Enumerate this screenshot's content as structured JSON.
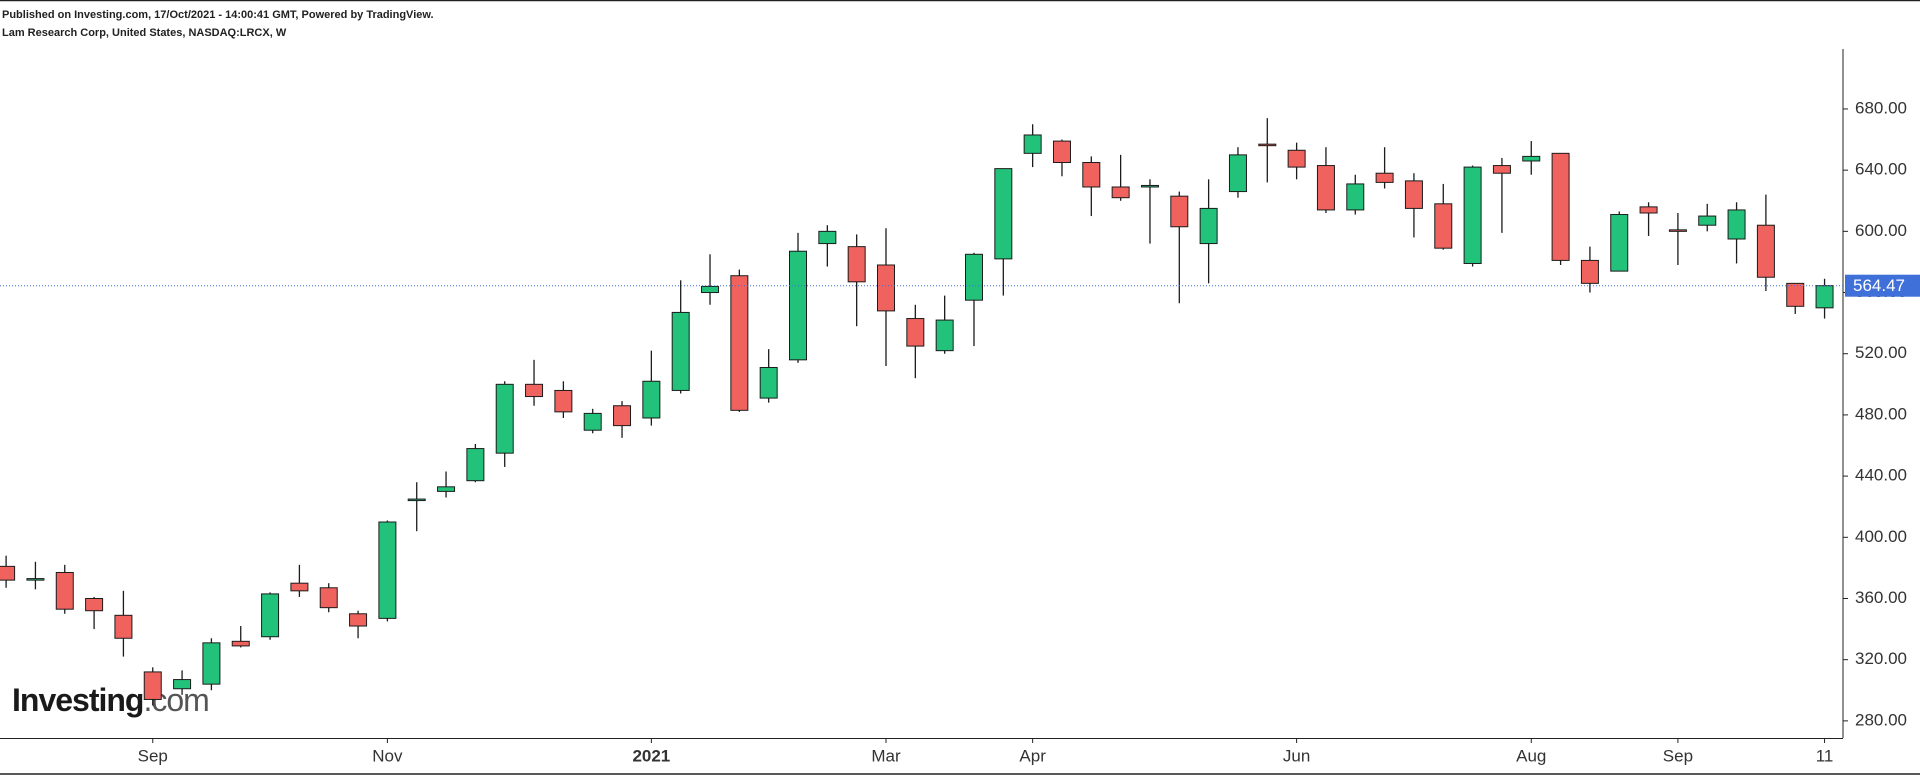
{
  "chart_data": {
    "type": "candlestick",
    "header": "Published on Investing.com, 17/Oct/2021 - 14:00:41 GMT, Powered by TradingView.",
    "title": "Lam Research Corp, United States, NASDAQ:LRCX, W",
    "logo": "Investing",
    "logo_suffix": ".com",
    "categories": [
      null,
      null,
      null,
      null,
      null,
      "Sep",
      null,
      null,
      null,
      null,
      null,
      null,
      null,
      "Nov",
      null,
      null,
      null,
      null,
      null,
      null,
      null,
      null,
      "2021",
      null,
      null,
      null,
      null,
      null,
      null,
      null,
      "Mar",
      null,
      null,
      null,
      null,
      "Apr",
      null,
      null,
      null,
      null,
      null,
      null,
      null,
      null,
      "Jun",
      null,
      null,
      null,
      null,
      null,
      null,
      null,
      "Aug",
      null,
      null,
      null,
      null,
      "Sep",
      null,
      null,
      null,
      null,
      "11"
    ],
    "open": [
      381,
      372,
      377,
      360,
      349,
      312,
      301,
      304,
      332,
      335,
      370,
      367,
      350,
      347,
      424,
      430,
      437,
      455,
      500,
      496,
      470,
      486,
      478,
      496,
      560,
      571,
      491,
      516,
      592,
      590,
      578,
      543,
      522,
      555,
      582,
      651,
      659,
      645,
      629,
      629,
      623,
      592,
      626,
      657,
      653,
      643,
      614,
      638,
      633,
      618,
      579,
      643,
      646,
      651,
      581,
      574,
      616,
      601,
      604,
      595,
      604,
      566,
      550
    ],
    "high": [
      388,
      384,
      382,
      361,
      365,
      315,
      313,
      334,
      342,
      364,
      382,
      370,
      352,
      411,
      436,
      443,
      461,
      502,
      516,
      502,
      484,
      489,
      522,
      568,
      585,
      575,
      523,
      599,
      604,
      598,
      602,
      552,
      558,
      586,
      641,
      670,
      660,
      649,
      650,
      634,
      626,
      634,
      655,
      674,
      658,
      655,
      637,
      655,
      638,
      631,
      643,
      648,
      659,
      651,
      590,
      613,
      619,
      612,
      618,
      619,
      624,
      566,
      569
    ],
    "low": [
      367,
      366,
      350,
      340,
      322,
      290,
      297,
      300,
      328,
      333,
      361,
      351,
      334,
      345,
      404,
      426,
      436,
      446,
      486,
      478,
      468,
      465,
      473,
      494,
      552,
      482,
      488,
      514,
      577,
      538,
      512,
      504,
      520,
      525,
      558,
      642,
      636,
      610,
      620,
      592,
      553,
      566,
      622,
      632,
      634,
      612,
      611,
      628,
      596,
      588,
      577,
      599,
      637,
      578,
      560,
      574,
      597,
      578,
      600,
      579,
      561,
      546,
      543
    ],
    "close": [
      372,
      373,
      353,
      352,
      334,
      294,
      307,
      331,
      329,
      363,
      365,
      354,
      342,
      410,
      425,
      433,
      458,
      500,
      492,
      482,
      481,
      473,
      502,
      547,
      564,
      483,
      511,
      587,
      600,
      567,
      548,
      525,
      542,
      585,
      641,
      663,
      645,
      629,
      622,
      630,
      603,
      615,
      650,
      656,
      642,
      614,
      631,
      632,
      615,
      589,
      642,
      638,
      649,
      581,
      566,
      611,
      612,
      600,
      610,
      614,
      570,
      551,
      564.47
    ],
    "up_color": "#22c27a",
    "down_color": "#f0625d",
    "outline_color": "#1c1c1c",
    "last_price": 564.47,
    "last_price_color": "#3f6fd8",
    "ylim": [
      268.8,
      719.2
    ],
    "yticks": [
      {
        "value": 280,
        "label": "280.00"
      },
      {
        "value": 320,
        "label": "320.00"
      },
      {
        "value": 360,
        "label": "360.00"
      },
      {
        "value": 400,
        "label": "400.00"
      },
      {
        "value": 440,
        "label": "440.00"
      },
      {
        "value": 480,
        "label": "480.00"
      },
      {
        "value": 520,
        "label": "520.00"
      },
      {
        "value": 560,
        "label": "560.00"
      },
      {
        "value": 600,
        "label": "600.00"
      },
      {
        "value": 640,
        "label": "640.00"
      },
      {
        "value": 680,
        "label": "680.00"
      }
    ]
  }
}
